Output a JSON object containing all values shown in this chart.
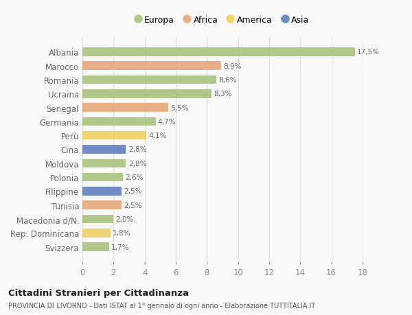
{
  "countries": [
    "Albania",
    "Marocco",
    "Romania",
    "Ucraina",
    "Senegal",
    "Germania",
    "Perù",
    "Cina",
    "Moldova",
    "Polonia",
    "Filippine",
    "Tunisia",
    "Macedonia d/N.",
    "Rep. Dominicana",
    "Svizzera"
  ],
  "values": [
    17.5,
    8.9,
    8.6,
    8.3,
    5.5,
    4.7,
    4.1,
    2.8,
    2.8,
    2.6,
    2.5,
    2.5,
    2.0,
    1.8,
    1.7
  ],
  "labels": [
    "17,5%",
    "8,9%",
    "8,6%",
    "8,3%",
    "5,5%",
    "4,7%",
    "4,1%",
    "2,8%",
    "2,8%",
    "2,6%",
    "2,5%",
    "2,5%",
    "2,0%",
    "1,8%",
    "1,7%"
  ],
  "continents": [
    "Europa",
    "Africa",
    "Europa",
    "Europa",
    "Africa",
    "Europa",
    "America",
    "Asia",
    "Europa",
    "Europa",
    "Asia",
    "Africa",
    "Europa",
    "America",
    "Europa"
  ],
  "colors": {
    "Europa": "#a8c47e",
    "Africa": "#e8a87a",
    "America": "#f0d060",
    "Asia": "#6080c0"
  },
  "legend_order": [
    "Europa",
    "Africa",
    "America",
    "Asia"
  ],
  "xlim": [
    0,
    18
  ],
  "xticks": [
    0,
    2,
    4,
    6,
    8,
    10,
    12,
    14,
    16,
    18
  ],
  "title": "Cittadini Stranieri per Cittadinanza",
  "subtitle": "PROVINCIA DI LIVORNO - Dati ISTAT al 1° gennaio di ogni anno - Elaborazione TUTTITALIA.IT",
  "background_color": "#f9f9f9",
  "bar_height": 0.62
}
